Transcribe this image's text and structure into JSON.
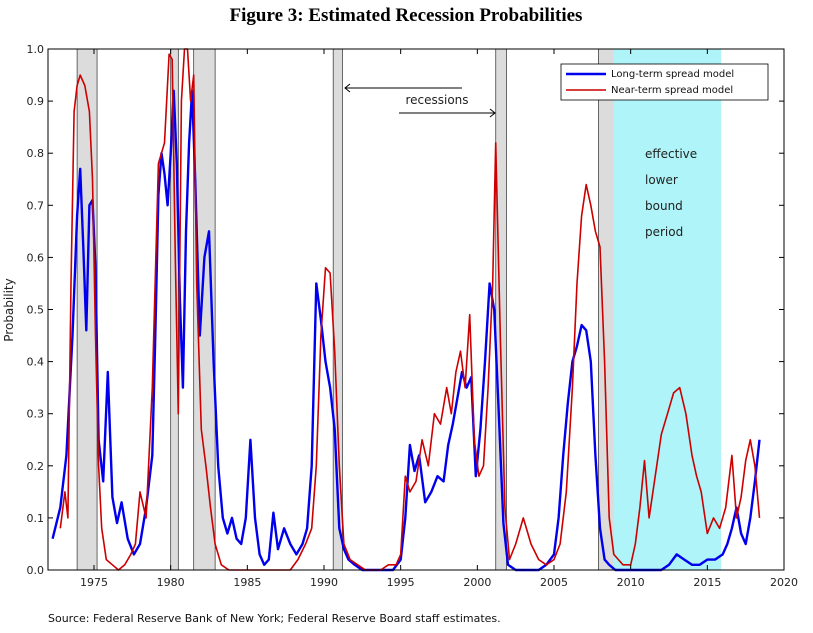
{
  "chart_data": {
    "type": "line",
    "title": "Figure 3:  Estimated Recession Probabilities",
    "ylabel": "Probability",
    "xlabel": "",
    "source": "Source: Federal Reserve Bank of New York; Federal Reserve Board staff estimates.",
    "xlim": [
      1972.0,
      2020.0
    ],
    "ylim": [
      0.0,
      1.0
    ],
    "x_ticks": [
      1975,
      1980,
      1985,
      1990,
      1995,
      2000,
      2005,
      2010,
      2015,
      2020
    ],
    "y_ticks": [
      0.0,
      0.1,
      0.2,
      0.3,
      0.4,
      0.5,
      0.6,
      0.7,
      0.8,
      0.9,
      1.0
    ],
    "y_tick_labels": [
      "0.0",
      "0.1",
      "0.2",
      "0.3",
      "0.4",
      "0.5",
      "0.6",
      "0.7",
      "0.8",
      "0.9",
      "1.0"
    ],
    "legend": {
      "placement": "top-right"
    },
    "recessions": [
      {
        "start": 1973.9,
        "end": 1975.2
      },
      {
        "start": 1980.0,
        "end": 1980.5
      },
      {
        "start": 1981.5,
        "end": 1982.9
      },
      {
        "start": 1990.6,
        "end": 1991.2
      },
      {
        "start": 2001.2,
        "end": 2001.9
      },
      {
        "start": 2007.9,
        "end": 2009.5
      }
    ],
    "elb_period": {
      "start": 2008.9,
      "end": 2015.9
    },
    "annotations": {
      "recessions_label": "recessions",
      "elb_lines": [
        "effective",
        "lower",
        "bound",
        "period"
      ]
    },
    "series": [
      {
        "name": "Long-term spread model",
        "color": "#0000ee",
        "x": [
          1972.3,
          1972.8,
          1973.2,
          1973.6,
          1973.9,
          1974.1,
          1974.3,
          1974.5,
          1974.7,
          1974.9,
          1975.1,
          1975.3,
          1975.6,
          1975.9,
          1976.2,
          1976.5,
          1976.8,
          1977.2,
          1977.6,
          1978.0,
          1978.4,
          1978.8,
          1979.0,
          1979.2,
          1979.4,
          1979.6,
          1979.8,
          1980.0,
          1980.2,
          1980.4,
          1980.6,
          1980.8,
          1981.0,
          1981.2,
          1981.4,
          1981.6,
          1981.9,
          1982.2,
          1982.5,
          1982.8,
          1983.1,
          1983.4,
          1983.7,
          1984.0,
          1984.3,
          1984.6,
          1984.9,
          1985.2,
          1985.5,
          1985.8,
          1986.1,
          1986.4,
          1986.7,
          1987.0,
          1987.4,
          1987.8,
          1988.2,
          1988.6,
          1988.9,
          1989.2,
          1989.5,
          1989.8,
          1990.1,
          1990.4,
          1990.7,
          1991.0,
          1991.3,
          1991.6,
          1992.0,
          1992.5,
          1993.0,
          1993.5,
          1994.0,
          1994.5,
          1995.0,
          1995.3,
          1995.6,
          1995.9,
          1996.2,
          1996.6,
          1997.0,
          1997.4,
          1997.8,
          1998.1,
          1998.4,
          1998.7,
          1999.0,
          1999.3,
          1999.6,
          1999.9,
          2000.2,
          2000.5,
          2000.8,
          2001.1,
          2001.4,
          2001.7,
          2002.0,
          2002.5,
          2003.0,
          2003.5,
          2004.0,
          2004.5,
          2005.0,
          2005.3,
          2005.6,
          2005.9,
          2006.2,
          2006.5,
          2006.8,
          2007.1,
          2007.4,
          2007.7,
          2008.0,
          2008.3,
          2008.6,
          2009.0,
          2009.5,
          2010.0,
          2010.5,
          2011.0,
          2011.5,
          2012.0,
          2012.5,
          2013.0,
          2013.5,
          2014.0,
          2014.5,
          2015.0,
          2015.5,
          2016.0,
          2016.3,
          2016.6,
          2016.9,
          2017.2,
          2017.5,
          2017.8,
          2018.1,
          2018.4
        ],
        "y": [
          0.06,
          0.12,
          0.22,
          0.45,
          0.68,
          0.77,
          0.62,
          0.46,
          0.7,
          0.71,
          0.58,
          0.25,
          0.17,
          0.38,
          0.14,
          0.09,
          0.13,
          0.06,
          0.03,
          0.05,
          0.12,
          0.22,
          0.45,
          0.72,
          0.8,
          0.76,
          0.7,
          0.8,
          0.92,
          0.78,
          0.52,
          0.35,
          0.65,
          0.82,
          0.92,
          0.75,
          0.45,
          0.6,
          0.65,
          0.4,
          0.2,
          0.1,
          0.07,
          0.1,
          0.06,
          0.05,
          0.1,
          0.25,
          0.1,
          0.03,
          0.01,
          0.02,
          0.11,
          0.04,
          0.08,
          0.05,
          0.03,
          0.05,
          0.08,
          0.2,
          0.55,
          0.48,
          0.4,
          0.35,
          0.27,
          0.08,
          0.04,
          0.02,
          0.01,
          0.0,
          0.0,
          0.0,
          0.0,
          0.0,
          0.02,
          0.1,
          0.24,
          0.19,
          0.22,
          0.13,
          0.15,
          0.18,
          0.17,
          0.24,
          0.28,
          0.33,
          0.38,
          0.35,
          0.37,
          0.18,
          0.27,
          0.4,
          0.55,
          0.5,
          0.3,
          0.09,
          0.01,
          0.0,
          0.0,
          0.0,
          0.0,
          0.01,
          0.03,
          0.1,
          0.22,
          0.32,
          0.4,
          0.43,
          0.47,
          0.46,
          0.4,
          0.22,
          0.08,
          0.02,
          0.01,
          0.0,
          0.0,
          0.0,
          0.0,
          0.0,
          0.0,
          0.0,
          0.01,
          0.03,
          0.02,
          0.01,
          0.01,
          0.02,
          0.02,
          0.03,
          0.05,
          0.08,
          0.12,
          0.07,
          0.05,
          0.1,
          0.17,
          0.25
        ]
      },
      {
        "name": "Near-term spread model",
        "color": "#cc0000",
        "x": [
          1972.8,
          1973.1,
          1973.3,
          1973.5,
          1973.7,
          1973.9,
          1974.1,
          1974.4,
          1974.7,
          1974.9,
          1975.1,
          1975.3,
          1975.5,
          1975.8,
          1976.2,
          1976.6,
          1977.0,
          1977.4,
          1977.7,
          1978.0,
          1978.4,
          1978.8,
          1979.2,
          1979.6,
          1979.9,
          1980.1,
          1980.3,
          1980.5,
          1980.7,
          1980.9,
          1981.1,
          1981.3,
          1981.5,
          1981.7,
          1982.0,
          1982.3,
          1982.6,
          1982.9,
          1983.3,
          1983.8,
          1984.3,
          1984.8,
          1985.3,
          1985.8,
          1986.3,
          1986.8,
          1987.3,
          1987.8,
          1988.3,
          1988.8,
          1989.2,
          1989.5,
          1989.8,
          1990.1,
          1990.4,
          1990.7,
          1991.0,
          1991.3,
          1991.7,
          1992.2,
          1992.7,
          1993.2,
          1993.7,
          1994.2,
          1994.7,
          1995.0,
          1995.3,
          1995.6,
          1996.0,
          1996.4,
          1996.8,
          1997.2,
          1997.6,
          1998.0,
          1998.3,
          1998.6,
          1998.9,
          1999.2,
          1999.5,
          1999.8,
          2000.1,
          2000.4,
          2000.7,
          2001.0,
          2001.2,
          2001.5,
          2001.8,
          2002.1,
          2002.5,
          2003.0,
          2003.5,
          2004.0,
          2004.5,
          2005.0,
          2005.4,
          2005.8,
          2006.2,
          2006.5,
          2006.8,
          2007.1,
          2007.4,
          2007.7,
          2008.0,
          2008.3,
          2008.6,
          2008.9,
          2009.2,
          2009.5,
          2010.0,
          2010.3,
          2010.6,
          2010.9,
          2011.2,
          2011.6,
          2012.0,
          2012.4,
          2012.8,
          2013.2,
          2013.6,
          2014.0,
          2014.3,
          2014.6,
          2015.0,
          2015.4,
          2015.8,
          2016.2,
          2016.6,
          2016.9,
          2017.2,
          2017.5,
          2017.8,
          2018.1,
          2018.4
        ],
        "y": [
          0.08,
          0.15,
          0.1,
          0.55,
          0.88,
          0.93,
          0.95,
          0.93,
          0.88,
          0.75,
          0.45,
          0.2,
          0.08,
          0.02,
          0.01,
          0.0,
          0.01,
          0.03,
          0.05,
          0.15,
          0.1,
          0.35,
          0.78,
          0.82,
          0.99,
          0.98,
          0.6,
          0.3,
          0.9,
          1.0,
          1.0,
          0.9,
          0.95,
          0.55,
          0.27,
          0.2,
          0.12,
          0.05,
          0.01,
          0.0,
          0.0,
          0.0,
          0.0,
          0.0,
          0.0,
          0.0,
          0.0,
          0.0,
          0.02,
          0.05,
          0.08,
          0.2,
          0.45,
          0.58,
          0.57,
          0.42,
          0.2,
          0.05,
          0.02,
          0.01,
          0.0,
          0.0,
          0.0,
          0.01,
          0.01,
          0.03,
          0.18,
          0.15,
          0.17,
          0.25,
          0.2,
          0.3,
          0.28,
          0.35,
          0.3,
          0.38,
          0.42,
          0.35,
          0.49,
          0.25,
          0.18,
          0.2,
          0.35,
          0.55,
          0.82,
          0.45,
          0.12,
          0.02,
          0.05,
          0.1,
          0.05,
          0.02,
          0.01,
          0.02,
          0.05,
          0.15,
          0.35,
          0.55,
          0.68,
          0.74,
          0.7,
          0.65,
          0.62,
          0.4,
          0.1,
          0.03,
          0.02,
          0.01,
          0.01,
          0.05,
          0.12,
          0.21,
          0.1,
          0.18,
          0.26,
          0.3,
          0.34,
          0.35,
          0.3,
          0.22,
          0.18,
          0.15,
          0.07,
          0.1,
          0.08,
          0.12,
          0.22,
          0.1,
          0.14,
          0.21,
          0.25,
          0.2,
          0.1
        ]
      }
    ]
  }
}
